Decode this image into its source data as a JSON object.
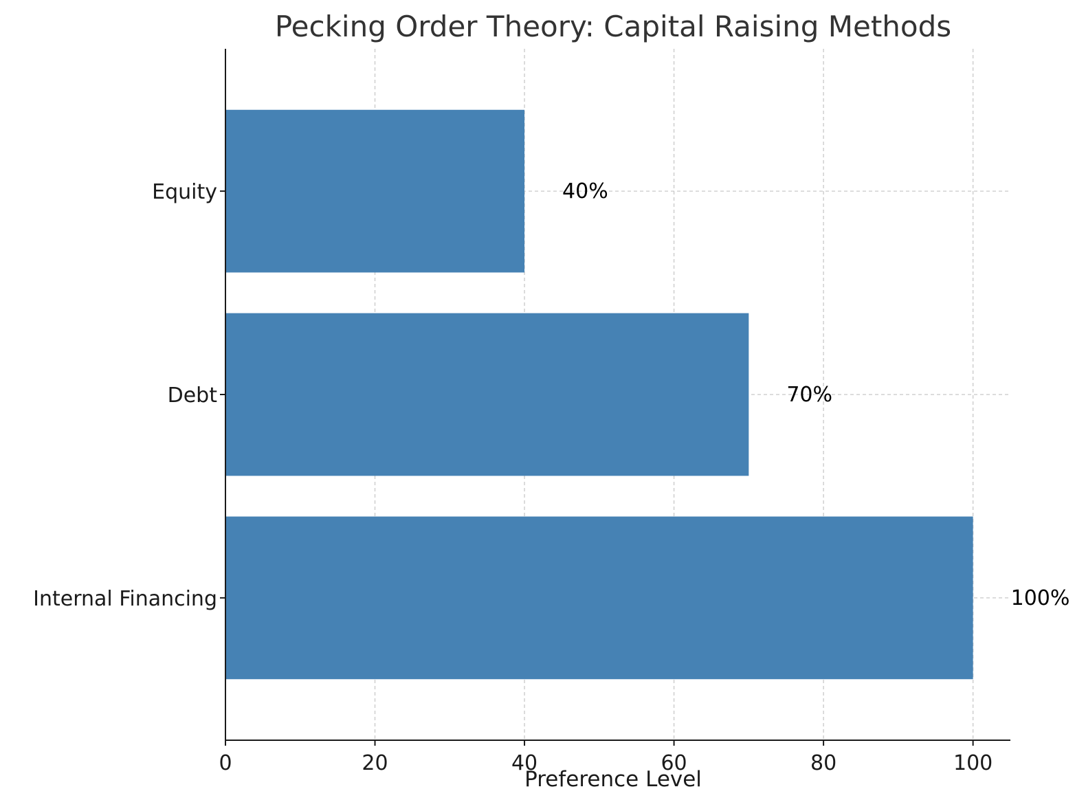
{
  "chart_data": {
    "type": "bar",
    "orientation": "horizontal",
    "title": "Pecking Order Theory: Capital Raising Methods",
    "xlabel": "Preference Level",
    "ylabel": "",
    "categories": [
      "Internal Financing",
      "Debt",
      "Equity"
    ],
    "values": [
      100,
      70,
      40
    ],
    "data_labels": [
      "100%",
      "70%",
      "40%"
    ],
    "xlim": [
      0,
      105
    ],
    "xticks": [
      0,
      20,
      40,
      60,
      80,
      100
    ],
    "xtick_labels": [
      "0",
      "20",
      "40",
      "60",
      "80",
      "100"
    ],
    "grid": true,
    "bar_color": "#4682b4",
    "grid_color": "#c8c8c8"
  }
}
